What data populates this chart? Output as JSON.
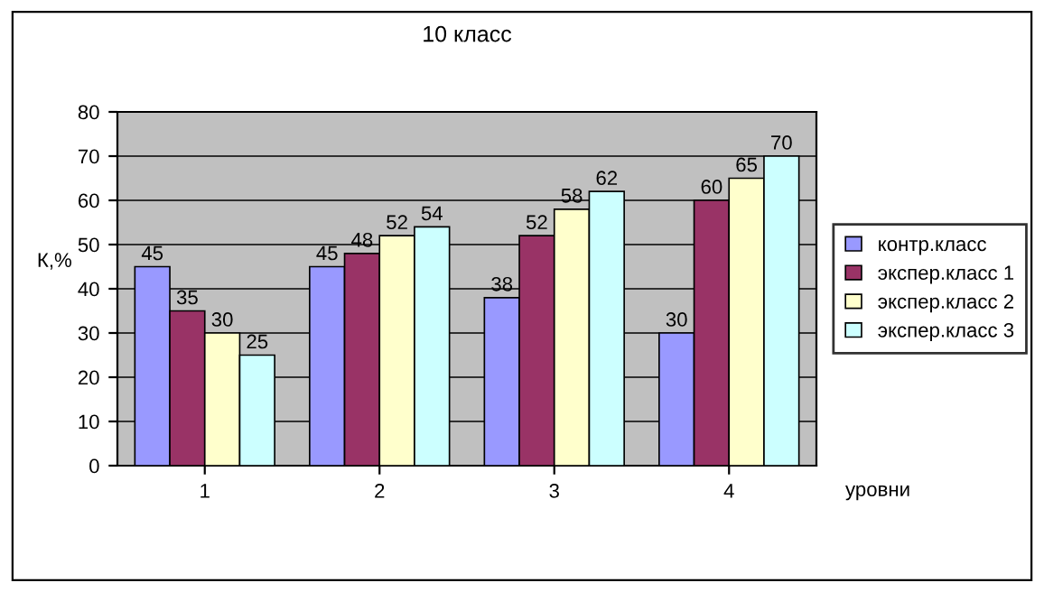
{
  "chart_data": {
    "type": "bar",
    "title": "10 класс",
    "xlabel": "уровни",
    "ylabel": "К,%",
    "categories": [
      "1",
      "2",
      "3",
      "4"
    ],
    "series": [
      {
        "name": "контр.класс",
        "color": "#9999ff",
        "values": [
          45,
          45,
          38,
          30
        ]
      },
      {
        "name": "экспер.класс 1",
        "color": "#993366",
        "values": [
          35,
          48,
          52,
          60
        ]
      },
      {
        "name": "экспер.класс 2",
        "color": "#ffffcc",
        "values": [
          30,
          52,
          58,
          65
        ]
      },
      {
        "name": "экспер.класс 3",
        "color": "#ccffff",
        "values": [
          25,
          54,
          62,
          70
        ]
      }
    ],
    "ylim": [
      0,
      80
    ],
    "yticks": [
      0,
      10,
      20,
      30,
      40,
      50,
      60,
      70,
      80
    ],
    "grid": "y",
    "legend": "right",
    "data_labels": true
  }
}
